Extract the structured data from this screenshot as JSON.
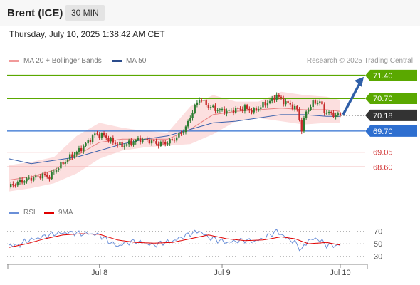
{
  "header": {
    "instrument": "Brent (ICE)",
    "interval": "30 MIN"
  },
  "timestamp": "Thursday, July 10, 2025 1:38:42 AM CET",
  "legend": {
    "bollinger": "MA 20 + Bollinger Bands",
    "ma50": "MA 50",
    "credit": "Research © 2025 Trading Central"
  },
  "rsi_legend": {
    "rsi": "RSI",
    "ma9": "9MA"
  },
  "colors": {
    "candle_up": "#2e7d32",
    "candle_down": "#c62828",
    "bollinger_fill": "#fbd9d9",
    "ma20": "#e88080",
    "ma50": "#3d63ad",
    "target": "#2f5fa8",
    "resistance": "#5aa800",
    "support": "#2e6fd0",
    "support_weak": "#e88080",
    "last": "#333333",
    "rsi": "#6a8fd8",
    "rsi_ma": "#e00000"
  },
  "chart_data": [
    {
      "type": "candlestick",
      "title": "Brent (ICE) 30 MIN",
      "y_range": [
        67.8,
        71.55
      ],
      "x_labels": [
        "Jul 8",
        "Jul 9",
        "Jul 10"
      ],
      "levels": [
        {
          "value": 71.4,
          "label": "71.40",
          "kind": "resistance"
        },
        {
          "value": 70.7,
          "label": "70.70",
          "kind": "resistance"
        },
        {
          "value": 70.18,
          "label": "70.18",
          "kind": "last"
        },
        {
          "value": 69.7,
          "label": "69.70",
          "kind": "support"
        },
        {
          "value": 69.05,
          "label": "69.05",
          "kind": "support_weak"
        },
        {
          "value": 68.6,
          "label": "68.60",
          "kind": "support_weak"
        }
      ],
      "price_path": [
        [
          0,
          67.99
        ],
        [
          5,
          68.15
        ],
        [
          10,
          68.25
        ],
        [
          15,
          68.35
        ],
        [
          18,
          68.3
        ],
        [
          22,
          68.6
        ],
        [
          26,
          68.85
        ],
        [
          28,
          68.95
        ],
        [
          31,
          69.1
        ],
        [
          34,
          69.3
        ],
        [
          38,
          69.6
        ],
        [
          42,
          69.55
        ],
        [
          46,
          69.35
        ],
        [
          50,
          69.25
        ],
        [
          54,
          69.35
        ],
        [
          58,
          69.45
        ],
        [
          62,
          69.4
        ],
        [
          66,
          69.3
        ],
        [
          70,
          69.35
        ],
        [
          74,
          69.5
        ],
        [
          78,
          69.8
        ],
        [
          81,
          70.3
        ],
        [
          84,
          70.7
        ],
        [
          88,
          70.45
        ],
        [
          92,
          70.35
        ],
        [
          96,
          70.3
        ],
        [
          100,
          70.35
        ],
        [
          104,
          70.4
        ],
        [
          108,
          70.3
        ],
        [
          112,
          70.5
        ],
        [
          116,
          70.65
        ],
        [
          118,
          70.8
        ],
        [
          120,
          70.65
        ],
        [
          124,
          70.5
        ],
        [
          127,
          70.35
        ],
        [
          129,
          69.75
        ],
        [
          131,
          70.3
        ],
        [
          134,
          70.55
        ],
        [
          137,
          70.6
        ],
        [
          139,
          70.3
        ],
        [
          143,
          70.2
        ],
        [
          146,
          70.18
        ]
      ],
      "ma20_path": [
        [
          0,
          68.2
        ],
        [
          10,
          68.3
        ],
        [
          20,
          68.5
        ],
        [
          30,
          68.95
        ],
        [
          40,
          69.35
        ],
        [
          50,
          69.45
        ],
        [
          60,
          69.45
        ],
        [
          70,
          69.45
        ],
        [
          80,
          69.75
        ],
        [
          90,
          70.2
        ],
        [
          100,
          70.3
        ],
        [
          110,
          70.35
        ],
        [
          120,
          70.4
        ],
        [
          130,
          70.35
        ],
        [
          140,
          70.35
        ],
        [
          146,
          70.3
        ]
      ],
      "bollinger_upper": [
        [
          0,
          68.65
        ],
        [
          10,
          68.75
        ],
        [
          20,
          68.9
        ],
        [
          30,
          69.55
        ],
        [
          40,
          69.95
        ],
        [
          50,
          69.8
        ],
        [
          60,
          69.7
        ],
        [
          70,
          69.65
        ],
        [
          80,
          70.45
        ],
        [
          90,
          70.8
        ],
        [
          100,
          70.6
        ],
        [
          110,
          70.6
        ],
        [
          120,
          70.9
        ],
        [
          130,
          70.8
        ],
        [
          140,
          70.75
        ],
        [
          146,
          70.65
        ]
      ],
      "bollinger_lower": [
        [
          0,
          67.85
        ],
        [
          10,
          67.95
        ],
        [
          20,
          68.1
        ],
        [
          30,
          68.4
        ],
        [
          40,
          68.85
        ],
        [
          50,
          69.1
        ],
        [
          60,
          69.2
        ],
        [
          70,
          69.25
        ],
        [
          80,
          69.3
        ],
        [
          90,
          69.6
        ],
        [
          100,
          70.0
        ],
        [
          110,
          70.1
        ],
        [
          120,
          70.0
        ],
        [
          130,
          69.9
        ],
        [
          140,
          69.95
        ],
        [
          146,
          69.95
        ]
      ],
      "ma50_path": [
        [
          0,
          68.85
        ],
        [
          10,
          68.7
        ],
        [
          20,
          68.8
        ],
        [
          30,
          68.9
        ],
        [
          40,
          69.1
        ],
        [
          50,
          69.3
        ],
        [
          60,
          69.45
        ],
        [
          70,
          69.55
        ],
        [
          80,
          69.75
        ],
        [
          90,
          69.95
        ],
        [
          100,
          70.0
        ],
        [
          110,
          70.1
        ],
        [
          120,
          70.2
        ],
        [
          130,
          70.2
        ],
        [
          140,
          70.15
        ],
        [
          146,
          70.15
        ]
      ]
    },
    {
      "type": "line",
      "title": "RSI",
      "y_range": [
        25,
        82
      ],
      "y_ticks": [
        30,
        50,
        70
      ],
      "series": [
        {
          "name": "RSI",
          "points": [
            [
              0,
              48
            ],
            [
              4,
              47
            ],
            [
              8,
              55
            ],
            [
              12,
              58
            ],
            [
              16,
              62
            ],
            [
              20,
              66
            ],
            [
              24,
              67
            ],
            [
              28,
              68
            ],
            [
              32,
              66
            ],
            [
              36,
              66
            ],
            [
              40,
              64
            ],
            [
              44,
              54
            ],
            [
              48,
              46
            ],
            [
              52,
              52
            ],
            [
              56,
              54
            ],
            [
              60,
              50
            ],
            [
              64,
              48
            ],
            [
              68,
              52
            ],
            [
              72,
              54
            ],
            [
              76,
              60
            ],
            [
              80,
              66
            ],
            [
              84,
              70
            ],
            [
              88,
              60
            ],
            [
              92,
              56
            ],
            [
              96,
              52
            ],
            [
              100,
              54
            ],
            [
              104,
              56
            ],
            [
              108,
              54
            ],
            [
              112,
              58
            ],
            [
              116,
              66
            ],
            [
              118,
              70
            ],
            [
              122,
              60
            ],
            [
              126,
              52
            ],
            [
              129,
              40
            ],
            [
              132,
              56
            ],
            [
              136,
              58
            ],
            [
              140,
              48
            ],
            [
              144,
              47
            ],
            [
              146,
              48
            ]
          ]
        },
        {
          "name": "9MA",
          "points": [
            [
              0,
              44
            ],
            [
              8,
              50
            ],
            [
              16,
              58
            ],
            [
              24,
              64
            ],
            [
              32,
              66
            ],
            [
              40,
              65
            ],
            [
              48,
              56
            ],
            [
              56,
              52
            ],
            [
              64,
              51
            ],
            [
              72,
              52
            ],
            [
              80,
              58
            ],
            [
              88,
              64
            ],
            [
              96,
              58
            ],
            [
              104,
              55
            ],
            [
              112,
              56
            ],
            [
              120,
              61
            ],
            [
              126,
              58
            ],
            [
              132,
              50
            ],
            [
              140,
              52
            ],
            [
              146,
              48
            ]
          ]
        }
      ]
    }
  ]
}
